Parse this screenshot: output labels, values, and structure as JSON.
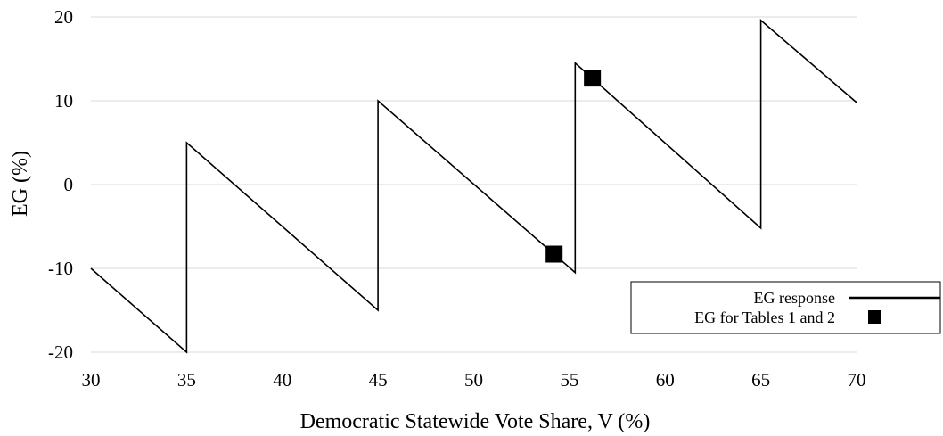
{
  "chart_data": {
    "type": "line",
    "xlabel": "Democratic Statewide Vote Share, V (%)",
    "ylabel": "EG (%)",
    "xlim": [
      30,
      70
    ],
    "ylim": [
      -20,
      20
    ],
    "x_ticks": [
      30,
      35,
      40,
      45,
      50,
      55,
      60,
      65,
      70
    ],
    "y_ticks": [
      -20,
      -10,
      0,
      10,
      20
    ],
    "grid": "horizontal",
    "legend_position": "bottom-right",
    "series": [
      {
        "name": "EG response",
        "kind": "line",
        "color": "#000000",
        "points": [
          [
            30,
            -10
          ],
          [
            35,
            -20
          ],
          [
            35,
            5
          ],
          [
            45,
            -15
          ],
          [
            45,
            10
          ],
          [
            55.3,
            -10.5
          ],
          [
            55.3,
            14.5
          ],
          [
            65,
            -5.2
          ],
          [
            65,
            19.6
          ],
          [
            70,
            9.8
          ]
        ]
      },
      {
        "name": "EG for Tables 1 and 2",
        "kind": "marker",
        "marker": "square",
        "color": "#000000",
        "points": [
          [
            54.2,
            -8.3
          ],
          [
            56.2,
            12.7
          ]
        ]
      }
    ]
  }
}
